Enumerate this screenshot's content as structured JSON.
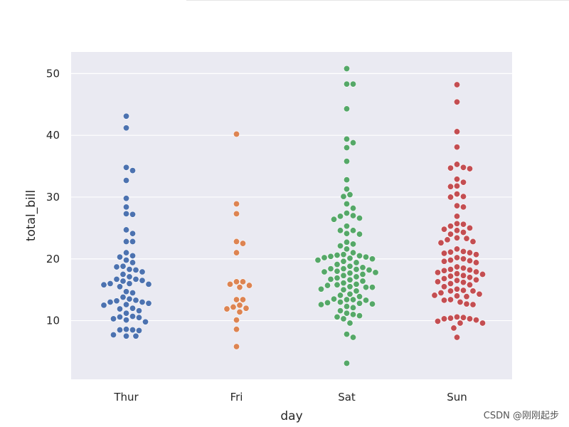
{
  "chart_data": {
    "type": "scatter",
    "xlabel": "day",
    "ylabel": "total_bill",
    "categories": [
      "Thur",
      "Fri",
      "Sat",
      "Sun"
    ],
    "y_ticks": [
      10,
      20,
      30,
      40,
      50
    ],
    "ylim": [
      0.5,
      53.5
    ],
    "grid": true,
    "series": [
      {
        "category": "Thur",
        "color": "#4c72b0",
        "values": [
          43.1,
          41.2,
          34.8,
          34.3,
          32.7,
          29.8,
          28.4,
          27.3,
          27.2,
          24.7,
          24.1,
          22.8,
          22.8,
          21.0,
          20.5,
          20.3,
          19.8,
          19.4,
          18.8,
          18.7,
          18.3,
          18.2,
          17.9,
          17.5,
          17.1,
          16.7,
          16.7,
          16.5,
          16.4,
          16.0,
          16.0,
          15.9,
          15.8,
          15.5,
          14.7,
          14.5,
          13.8,
          13.5,
          13.3,
          13.2,
          13.0,
          13.0,
          12.8,
          12.6,
          12.5,
          12.0,
          11.9,
          11.6,
          11.2,
          10.7,
          10.6,
          10.5,
          10.3,
          10.1,
          9.8,
          8.6,
          8.5,
          8.5,
          8.4,
          7.7,
          7.5,
          7.5
        ]
      },
      {
        "category": "Fri",
        "color": "#dd8452",
        "values": [
          40.2,
          28.9,
          27.3,
          22.8,
          22.5,
          21.0,
          16.3,
          16.3,
          15.9,
          15.7,
          15.4,
          13.4,
          13.4,
          12.5,
          12.2,
          12.0,
          11.9,
          11.4,
          10.1,
          8.6,
          5.8
        ]
      },
      {
        "category": "Sat",
        "color": "#55a868",
        "values": [
          50.8,
          48.3,
          48.3,
          44.3,
          39.4,
          38.8,
          38.0,
          35.8,
          32.8,
          31.3,
          30.4,
          30.1,
          28.9,
          28.2,
          27.4,
          27.0,
          26.9,
          26.6,
          26.4,
          25.3,
          24.6,
          24.6,
          24.1,
          24.0,
          22.7,
          22.4,
          22.1,
          21.6,
          21.0,
          20.7,
          20.6,
          20.5,
          20.4,
          20.3,
          20.2,
          20.1,
          20.0,
          19.8,
          19.6,
          19.4,
          19.1,
          18.8,
          18.6,
          18.4,
          18.4,
          18.3,
          18.2,
          18.0,
          17.9,
          17.8,
          17.7,
          17.5,
          17.3,
          17.1,
          16.9,
          16.7,
          16.6,
          16.4,
          16.1,
          15.9,
          15.8,
          15.7,
          15.5,
          15.4,
          15.4,
          15.1,
          15.0,
          14.8,
          14.3,
          14.1,
          13.9,
          13.5,
          13.4,
          13.4,
          13.3,
          13.0,
          12.9,
          12.8,
          12.7,
          12.6,
          12.3,
          12.1,
          11.6,
          11.2,
          11.0,
          10.8,
          10.6,
          10.3,
          9.6,
          7.8,
          7.3,
          3.1
        ]
      },
      {
        "category": "Sun",
        "color": "#c44e52",
        "values": [
          48.2,
          45.4,
          40.6,
          38.1,
          35.3,
          34.8,
          34.7,
          34.6,
          32.9,
          32.4,
          31.8,
          31.7,
          30.5,
          30.1,
          30.0,
          28.6,
          28.4,
          26.9,
          25.7,
          25.6,
          25.3,
          25.0,
          24.8,
          24.6,
          24.3,
          24.0,
          23.4,
          23.3,
          23.1,
          22.8,
          22.6,
          21.6,
          21.2,
          21.1,
          21.0,
          20.9,
          20.7,
          20.2,
          20.0,
          19.8,
          19.7,
          19.6,
          19.4,
          18.7,
          18.5,
          18.3,
          18.2,
          18.1,
          17.9,
          17.8,
          17.6,
          17.5,
          17.3,
          17.2,
          17.0,
          16.8,
          16.6,
          16.5,
          16.3,
          16.2,
          16.0,
          15.8,
          15.5,
          15.1,
          14.9,
          14.8,
          14.8,
          14.5,
          14.3,
          14.1,
          14.0,
          13.9,
          13.4,
          13.3,
          13.0,
          12.7,
          12.6,
          10.6,
          10.5,
          10.4,
          10.3,
          10.3,
          10.1,
          9.9,
          9.6,
          9.6,
          8.8,
          7.3
        ]
      }
    ]
  },
  "watermark": "CSDN @刚刚起步"
}
